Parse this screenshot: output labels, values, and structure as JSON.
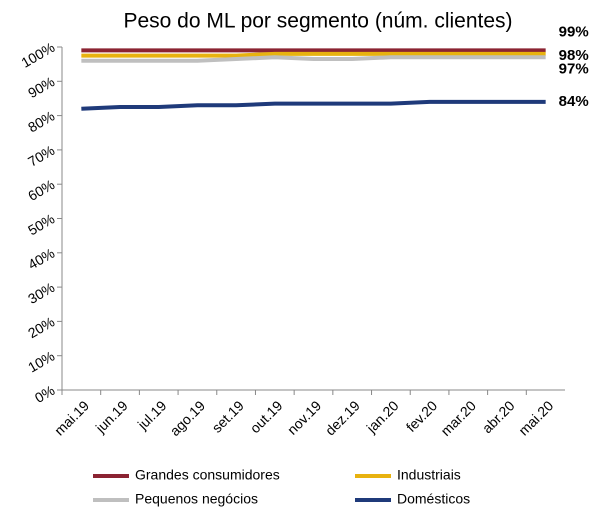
{
  "chart_data": {
    "type": "line",
    "title": "Peso do ML por segmento (núm. clientes)",
    "categories": [
      "mai.19",
      "jun.19",
      "jul.19",
      "ago.19",
      "set.19",
      "out.19",
      "nov.19",
      "dez.19",
      "jan.20",
      "fev.20",
      "mar.20",
      "abr.20",
      "mai.20"
    ],
    "series": [
      {
        "name": "Grandes consumidores",
        "color": "#8b2332",
        "values": [
          99,
          99,
          99,
          99,
          99,
          99,
          99,
          99,
          99,
          99,
          99,
          99,
          99
        ],
        "value_labels": [
          null,
          null,
          null,
          null,
          null,
          null,
          null,
          null,
          null,
          null,
          null,
          null,
          "99%"
        ]
      },
      {
        "name": "Industriais",
        "color": "#e8b20f",
        "values": [
          97.5,
          97.5,
          97.5,
          97.5,
          97.5,
          98,
          98,
          98,
          98,
          98,
          98,
          98,
          98
        ],
        "value_labels": [
          null,
          null,
          null,
          null,
          null,
          null,
          null,
          null,
          null,
          null,
          null,
          null,
          "98%"
        ]
      },
      {
        "name": "Pequenos negócios",
        "color": "#bfbfbf",
        "values": [
          96,
          96,
          96,
          96,
          96.5,
          97,
          96.5,
          96.5,
          97,
          97,
          97,
          97,
          97
        ],
        "value_labels": [
          null,
          null,
          null,
          null,
          null,
          null,
          null,
          null,
          null,
          null,
          null,
          null,
          "97%"
        ]
      },
      {
        "name": "Domésticos",
        "color": "#1f3a7a",
        "values": [
          82,
          82.5,
          82.5,
          83,
          83,
          83.5,
          83.5,
          83.5,
          83.5,
          84,
          84,
          84,
          84
        ],
        "value_labels": [
          null,
          null,
          null,
          null,
          null,
          null,
          null,
          null,
          null,
          null,
          null,
          null,
          "84%"
        ]
      }
    ],
    "ylim": [
      0,
      100
    ],
    "yticks": [
      {
        "value": 0,
        "label": "0%"
      },
      {
        "value": 10,
        "label": "10%"
      },
      {
        "value": 20,
        "label": "20%"
      },
      {
        "value": 30,
        "label": "30%"
      },
      {
        "value": 40,
        "label": "40%"
      },
      {
        "value": 50,
        "label": "50%"
      },
      {
        "value": 60,
        "label": "60%"
      },
      {
        "value": 70,
        "label": "70%"
      },
      {
        "value": 80,
        "label": "80%"
      },
      {
        "value": 90,
        "label": "90%"
      },
      {
        "value": 100,
        "label": "100%"
      }
    ],
    "grid": false,
    "legend": "bottom"
  }
}
